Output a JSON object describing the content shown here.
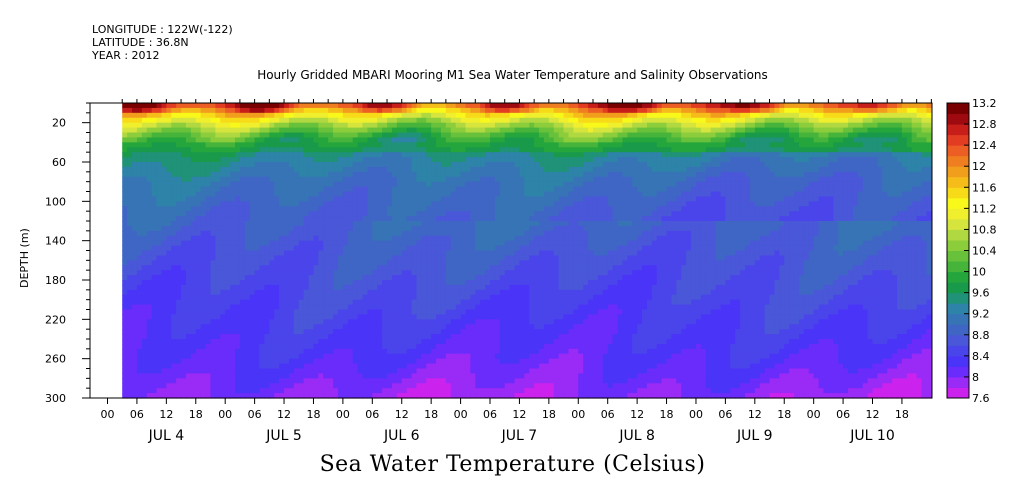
{
  "header": {
    "longitude": "LONGITUDE : 122W(-122)",
    "latitude": "LATITUDE : 36.8N",
    "year": "YEAR : 2012"
  },
  "chart_data": {
    "type": "heatmap",
    "title": "Hourly Gridded MBARI Mooring M1 Sea Water Temperature and Salinity Observations",
    "xlabel": "Sea Water Temperature (Celsius)",
    "ylabel": "DEPTH (m)",
    "y_axis": {
      "reversed": true,
      "range": [
        0,
        300
      ],
      "ticks": [
        20,
        60,
        100,
        140,
        180,
        220,
        260,
        300
      ]
    },
    "x_axis": {
      "hour_ticks": [
        "00",
        "06",
        "12",
        "18",
        "00",
        "06",
        "12",
        "18",
        "00",
        "06",
        "12",
        "18",
        "00",
        "06",
        "12",
        "18",
        "00",
        "06",
        "12",
        "18",
        "00",
        "06",
        "12",
        "18",
        "00",
        "06",
        "12",
        "18"
      ],
      "day_labels": [
        "JUL  4",
        "JUL  5",
        "JUL  6",
        "JUL  7",
        "JUL  8",
        "JUL  9",
        "JUL 10"
      ],
      "data_start_hour": 3
    },
    "colorbar": {
      "levels": [
        7.6,
        7.8,
        8,
        8.2,
        8.4,
        8.6,
        8.8,
        9,
        9.2,
        9.4,
        9.6,
        9.8,
        10,
        10.2,
        10.4,
        10.6,
        10.8,
        11,
        11.2,
        11.4,
        11.6,
        11.8,
        12,
        12.2,
        12.4,
        12.6,
        12.8,
        13,
        13.2
      ],
      "labels": [
        "13.2",
        "12.8",
        "12.4",
        "12",
        "11.6",
        "11.2",
        "10.8",
        "10.4",
        "10",
        "9.6",
        "9.2",
        "8.8",
        "8.4",
        "8",
        "7.6"
      ],
      "colors": [
        "#cc22ee",
        "#9a2af5",
        "#6a2cfb",
        "#4a34f8",
        "#4a45ea",
        "#4957d8",
        "#3f66c4",
        "#3774b6",
        "#2d83a8",
        "#1f9277",
        "#189a4a",
        "#25a63c",
        "#46b43a",
        "#68c13a",
        "#8ccd3c",
        "#b0d840",
        "#d6e43e",
        "#f0ef2e",
        "#f8f81a",
        "#f7da18",
        "#f5bc1a",
        "#f29e1d",
        "#ef7e20",
        "#ec5e24",
        "#e23c22",
        "#c81e1a",
        "#9e0a10",
        "#780000"
      ]
    },
    "profile": [
      {
        "depth": 0,
        "temp": 12.6
      },
      {
        "depth": 10,
        "temp": 11.6
      },
      {
        "depth": 20,
        "temp": 10.8
      },
      {
        "depth": 35,
        "temp": 10.0
      },
      {
        "depth": 55,
        "temp": 9.5
      },
      {
        "depth": 80,
        "temp": 9.2
      },
      {
        "depth": 110,
        "temp": 9.0
      },
      {
        "depth": 140,
        "temp": 8.8
      },
      {
        "depth": 180,
        "temp": 8.6
      },
      {
        "depth": 220,
        "temp": 8.4
      },
      {
        "depth": 260,
        "temp": 8.2
      },
      {
        "depth": 300,
        "temp": 7.9
      }
    ]
  }
}
